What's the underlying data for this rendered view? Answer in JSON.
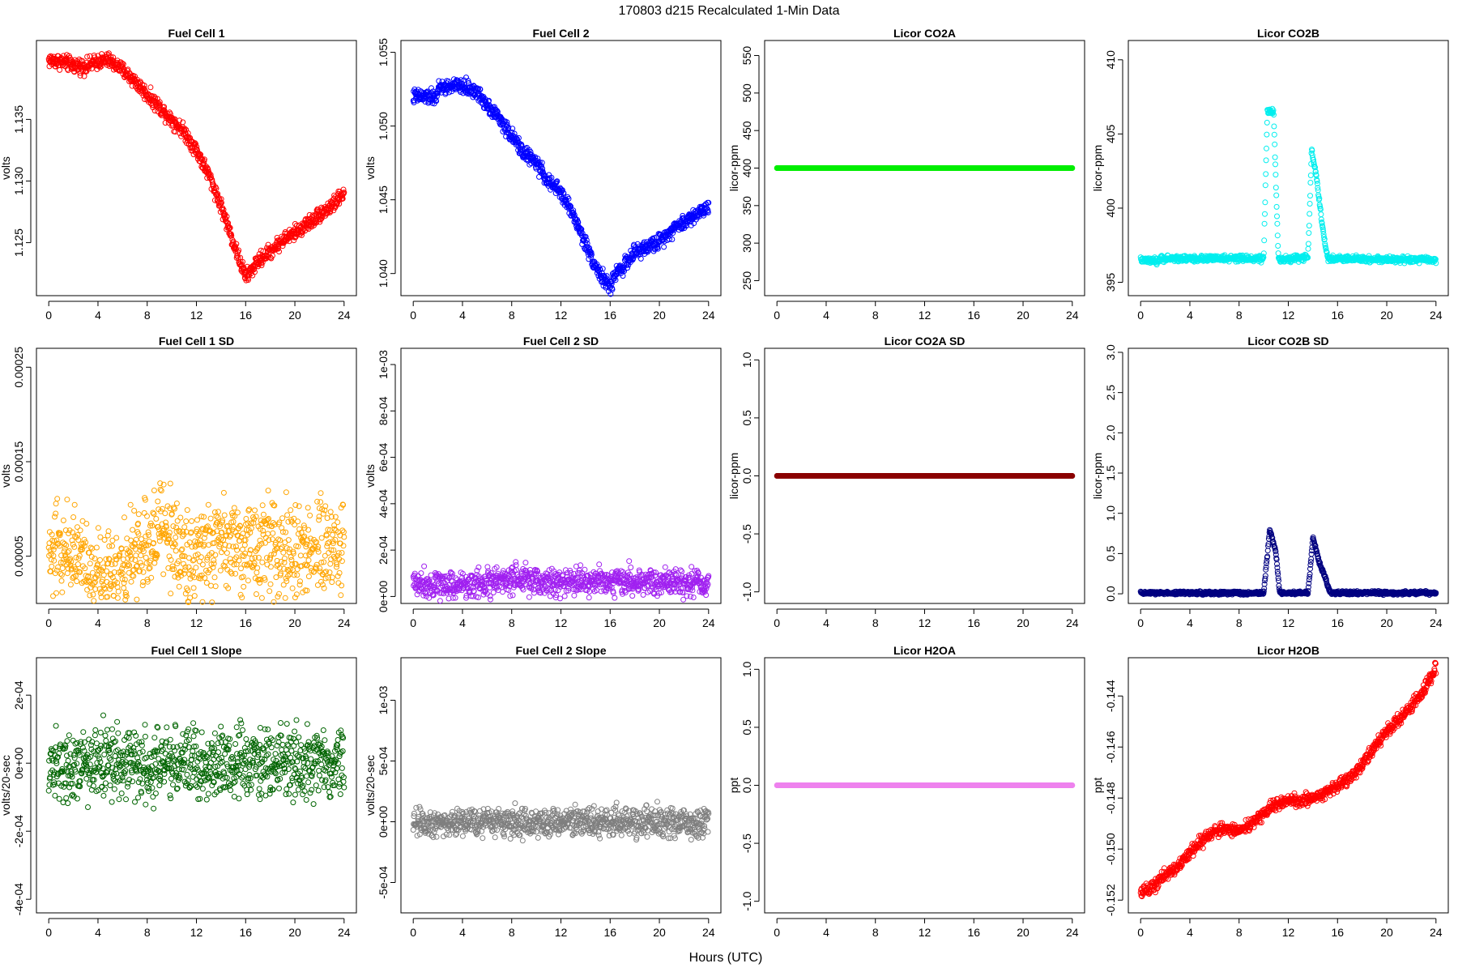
{
  "figure": {
    "title": "170803    d215    Recalculated 1-Min Data",
    "xlabel": "Hours (UTC)"
  },
  "chart_data": [
    {
      "type": "scatter",
      "title": "Fuel Cell 1",
      "xlabel": "",
      "ylabel": "volts",
      "color": "#ff0000",
      "xlim": [
        -1,
        25
      ],
      "ylim": [
        1.1207,
        1.1414
      ],
      "xticks": [
        0,
        4,
        8,
        12,
        16,
        20,
        24
      ],
      "xtick_labels": [
        "0",
        "4",
        "8",
        "12",
        "16",
        "20",
        "24"
      ],
      "yticks": [
        1.125,
        1.13,
        1.135
      ],
      "ytick_labels": [
        "1.125",
        "1.130",
        "1.135"
      ],
      "series": [
        {
          "x": [
            0,
            1,
            2,
            3,
            4,
            4.8,
            5.5,
            6,
            7,
            8,
            9,
            10,
            11,
            12,
            13,
            14,
            15,
            16,
            16.5,
            17,
            18,
            19,
            20,
            21,
            22,
            23,
            24
          ],
          "values": [
            1.1398,
            1.1397,
            1.1394,
            1.1393,
            1.1397,
            1.1398,
            1.1394,
            1.139,
            1.1381,
            1.137,
            1.136,
            1.135,
            1.134,
            1.1325,
            1.1305,
            1.128,
            1.125,
            1.1222,
            1.1228,
            1.1235,
            1.1243,
            1.1252,
            1.1258,
            1.1265,
            1.1273,
            1.128,
            1.129
          ]
        }
      ],
      "noise": 0.0003
    },
    {
      "type": "scatter",
      "title": "Fuel Cell 2",
      "xlabel": "",
      "ylabel": "volts",
      "color": "#0000ff",
      "xlim": [
        -1,
        25
      ],
      "ylim": [
        1.0385,
        1.0558
      ],
      "xticks": [
        0,
        4,
        8,
        12,
        16,
        20,
        24
      ],
      "xtick_labels": [
        "0",
        "4",
        "8",
        "12",
        "16",
        "20",
        "24"
      ],
      "yticks": [
        1.04,
        1.045,
        1.05,
        1.055
      ],
      "ytick_labels": [
        "1.040",
        "1.045",
        "1.050",
        "1.055"
      ],
      "series": [
        {
          "x": [
            0,
            1,
            1.8,
            2,
            3,
            4,
            5,
            6,
            7,
            8,
            9,
            10,
            11,
            12,
            13,
            14,
            15,
            16,
            16.5,
            17,
            18,
            19,
            20,
            21,
            22,
            23,
            24
          ],
          "values": [
            1.052,
            1.052,
            1.0519,
            1.0525,
            1.0527,
            1.0527,
            1.0524,
            1.0515,
            1.0505,
            1.0493,
            1.0482,
            1.0475,
            1.0462,
            1.0455,
            1.044,
            1.042,
            1.0402,
            1.039,
            1.0402,
            1.0404,
            1.0414,
            1.0418,
            1.0422,
            1.043,
            1.0435,
            1.044,
            1.0446
          ]
        }
      ],
      "noise": 0.00025
    },
    {
      "type": "scatter",
      "title": "Licor CO2A",
      "xlabel": "",
      "ylabel": "licor-ppm",
      "color": "#00ee00",
      "xlim": [
        -1,
        25
      ],
      "ylim": [
        230,
        570
      ],
      "xticks": [
        0,
        4,
        8,
        12,
        16,
        20,
        24
      ],
      "xtick_labels": [
        "0",
        "4",
        "8",
        "12",
        "16",
        "20",
        "24"
      ],
      "yticks": [
        250,
        300,
        350,
        400,
        450,
        500,
        550
      ],
      "ytick_labels": [
        "250",
        "300",
        "350",
        "400",
        "450",
        "500",
        "550"
      ],
      "series": [
        {
          "x": [
            0,
            24
          ],
          "values": [
            400,
            400
          ]
        }
      ],
      "noise": 0
    },
    {
      "type": "scatter",
      "title": "Licor CO2B",
      "xlabel": "",
      "ylabel": "licor-ppm",
      "color": "#00eeee",
      "xlim": [
        -1,
        25
      ],
      "ylim": [
        394.1,
        411.3
      ],
      "xticks": [
        0,
        4,
        8,
        12,
        16,
        20,
        24
      ],
      "xtick_labels": [
        "0",
        "4",
        "8",
        "12",
        "16",
        "20",
        "24"
      ],
      "yticks": [
        395,
        400,
        405,
        410
      ],
      "ytick_labels": [
        "395",
        "400",
        "405",
        "410"
      ],
      "series": [
        {
          "x": [
            0,
            1.4,
            1.6,
            10.0,
            10.3,
            10.8,
            11.2,
            11.4,
            13.6,
            13.9,
            14.3,
            14.8,
            15.2,
            24
          ],
          "values": [
            396.5,
            396.4,
            396.6,
            396.6,
            406.5,
            406.5,
            396.6,
            396.5,
            396.7,
            404.0,
            402.0,
            398.5,
            396.6,
            396.5
          ]
        }
      ],
      "noise": 0.1
    },
    {
      "type": "scatter",
      "title": "Fuel Cell 1 SD",
      "xlabel": "",
      "ylabel": "volts",
      "color": "#ffa500",
      "xlim": [
        -1,
        25
      ],
      "ylim": [
        0.0,
        0.00027
      ],
      "xticks": [
        0,
        4,
        8,
        12,
        16,
        20,
        24
      ],
      "xtick_labels": [
        "0",
        "4",
        "8",
        "12",
        "16",
        "20",
        "24"
      ],
      "yticks": [
        5e-05,
        0.00015,
        0.00025
      ],
      "ytick_labels": [
        "0.00005",
        "0.00015",
        "0.00025"
      ],
      "series": [
        {
          "x": [
            0,
            2,
            3,
            4,
            6,
            8,
            9,
            10,
            11,
            12,
            14,
            16,
            18,
            20,
            22,
            24
          ],
          "values": [
            5e-05,
            6e-05,
            4e-05,
            3e-05,
            4e-05,
            6e-05,
            8e-05,
            7e-05,
            5e-05,
            5e-05,
            6e-05,
            6e-05,
            6e-05,
            5e-05,
            5e-05,
            6e-05
          ]
        }
      ],
      "noise": 2.5e-05
    },
    {
      "type": "scatter",
      "title": "Fuel Cell 2 SD",
      "xlabel": "",
      "ylabel": "volts",
      "color": "#a020f0",
      "xlim": [
        -1,
        25
      ],
      "ylim": [
        -3e-05,
        0.00107
      ],
      "xticks": [
        0,
        4,
        8,
        12,
        16,
        20,
        24
      ],
      "xtick_labels": [
        "0",
        "4",
        "8",
        "12",
        "16",
        "20",
        "24"
      ],
      "yticks": [
        0,
        0.0002,
        0.0004,
        0.0006,
        0.0008,
        0.001
      ],
      "ytick_labels": [
        "0e+00",
        "2e-04",
        "4e-04",
        "6e-04",
        "8e-04",
        "1e-03"
      ],
      "series": [
        {
          "x": [
            0,
            4,
            8,
            12,
            16,
            20,
            24
          ],
          "values": [
            6e-05,
            5e-05,
            7e-05,
            6e-05,
            7e-05,
            6e-05,
            6e-05
          ]
        }
      ],
      "noise": 3e-05
    },
    {
      "type": "scatter",
      "title": "Licor CO2A SD",
      "xlabel": "",
      "ylabel": "licor-ppm",
      "color": "#8b0000",
      "xlim": [
        -1,
        25
      ],
      "ylim": [
        -1.1,
        1.1
      ],
      "xticks": [
        0,
        4,
        8,
        12,
        16,
        20,
        24
      ],
      "xtick_labels": [
        "0",
        "4",
        "8",
        "12",
        "16",
        "20",
        "24"
      ],
      "yticks": [
        -1.0,
        -0.5,
        0.0,
        0.5,
        1.0
      ],
      "ytick_labels": [
        "-1.0",
        "-0.5",
        "0.0",
        "0.5",
        "1.0"
      ],
      "series": [
        {
          "x": [
            0,
            24
          ],
          "values": [
            0,
            0
          ]
        }
      ],
      "noise": 0
    },
    {
      "type": "scatter",
      "title": "Licor CO2B SD",
      "xlabel": "",
      "ylabel": "licor-ppm",
      "color": "#000080",
      "xlim": [
        -1,
        25
      ],
      "ylim": [
        -0.12,
        3.05
      ],
      "xticks": [
        0,
        4,
        8,
        12,
        16,
        20,
        24
      ],
      "xtick_labels": [
        "0",
        "4",
        "8",
        "12",
        "16",
        "20",
        "24"
      ],
      "yticks": [
        0,
        0.5,
        1.0,
        1.5,
        2.0,
        2.5,
        3.0
      ],
      "ytick_labels": [
        "0.0",
        "0.5",
        "1.0",
        "1.5",
        "2.0",
        "2.5",
        "3.0"
      ],
      "series": [
        {
          "x": [
            0,
            10.0,
            10.5,
            11.0,
            11.3,
            13.6,
            14.0,
            14.5,
            15.0,
            15.4,
            24
          ],
          "values": [
            0.01,
            0.01,
            0.8,
            0.5,
            0.01,
            0.01,
            0.7,
            0.4,
            0.2,
            0.01,
            0.01
          ]
        }
      ],
      "noise": 0.01
    },
    {
      "type": "scatter",
      "title": "Fuel Cell 1 Slope",
      "xlabel": "",
      "ylabel": "volts/20-sec",
      "color": "#006400",
      "xlim": [
        -1,
        25
      ],
      "ylim": [
        -0.00044,
        0.00031
      ],
      "xticks": [
        0,
        4,
        8,
        12,
        16,
        20,
        24
      ],
      "xtick_labels": [
        "0",
        "4",
        "8",
        "12",
        "16",
        "20",
        "24"
      ],
      "yticks": [
        -0.0004,
        -0.0002,
        0,
        0.0002
      ],
      "ytick_labels": [
        "-4e-04",
        "-2e-04",
        "0e+00",
        "2e-04"
      ],
      "series": [
        {
          "x": [
            0,
            24
          ],
          "values": [
            0.0,
            0.0
          ]
        }
      ],
      "noise": 5e-05
    },
    {
      "type": "scatter",
      "title": "Fuel Cell 2 Slope",
      "xlabel": "",
      "ylabel": "volts/20-sec",
      "color": "#7f7f7f",
      "xlim": [
        -1,
        25
      ],
      "ylim": [
        -0.00075,
        0.00135
      ],
      "xticks": [
        0,
        4,
        8,
        12,
        16,
        20,
        24
      ],
      "xtick_labels": [
        "0",
        "4",
        "8",
        "12",
        "16",
        "20",
        "24"
      ],
      "yticks": [
        -0.0005,
        0,
        0.0005,
        0.001
      ],
      "ytick_labels": [
        "-5e-04",
        "0e+00",
        "5e-04",
        "1e-03"
      ],
      "series": [
        {
          "x": [
            0,
            24
          ],
          "values": [
            0.0,
            0.0
          ]
        }
      ],
      "noise": 6e-05
    },
    {
      "type": "scatter",
      "title": "Licor H2OA",
      "xlabel": "",
      "ylabel": "ppt",
      "color": "#ee82ee",
      "xlim": [
        -1,
        25
      ],
      "ylim": [
        -1.1,
        1.1
      ],
      "xticks": [
        0,
        4,
        8,
        12,
        16,
        20,
        24
      ],
      "xtick_labels": [
        "0",
        "4",
        "8",
        "12",
        "16",
        "20",
        "24"
      ],
      "yticks": [
        -1.0,
        -0.5,
        0.0,
        0.5,
        1.0
      ],
      "ytick_labels": [
        "-1.0",
        "-0.5",
        "0.0",
        "0.5",
        "1.0"
      ],
      "series": [
        {
          "x": [
            0,
            24
          ],
          "values": [
            0,
            0
          ]
        }
      ],
      "noise": 0
    },
    {
      "type": "scatter",
      "title": "Licor H2OB",
      "xlabel": "",
      "ylabel": "ppt",
      "color": "#ff0000",
      "xlim": [
        -1,
        25
      ],
      "ylim": [
        -0.1525,
        -0.1425
      ],
      "xticks": [
        0,
        4,
        8,
        12,
        16,
        20,
        24
      ],
      "xtick_labels": [
        "0",
        "4",
        "8",
        "12",
        "16",
        "20",
        "24"
      ],
      "yticks": [
        -0.152,
        -0.15,
        -0.148,
        -0.146,
        -0.144
      ],
      "ytick_labels": [
        "-0.152",
        "-0.150",
        "-0.148",
        "-0.146",
        "-0.144"
      ],
      "series": [
        {
          "x": [
            0,
            1,
            2,
            3,
            4,
            5,
            6,
            7,
            8,
            9,
            10,
            11,
            12,
            13,
            14,
            15,
            16,
            17,
            18,
            19,
            20,
            21,
            22,
            23,
            24
          ],
          "values": [
            -0.1517,
            -0.1515,
            -0.151,
            -0.1507,
            -0.1501,
            -0.1497,
            -0.1493,
            -0.1492,
            -0.1493,
            -0.149,
            -0.1486,
            -0.1482,
            -0.1481,
            -0.1481,
            -0.148,
            -0.1478,
            -0.1475,
            -0.1472,
            -0.1467,
            -0.146,
            -0.1454,
            -0.1449,
            -0.1444,
            -0.1438,
            -0.1429
          ]
        }
      ],
      "noise": 0.00012
    }
  ]
}
